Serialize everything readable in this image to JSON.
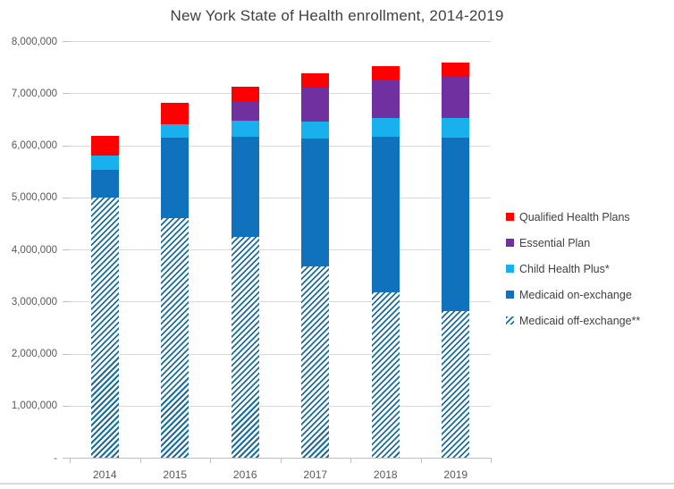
{
  "title": "New York State of Health enrollment, 2014-2019",
  "chart_data": {
    "type": "bar",
    "stacked": true,
    "title": "New York State of Health enrollment, 2014-2019",
    "categories": [
      "2014",
      "2015",
      "2016",
      "2017",
      "2018",
      "2019"
    ],
    "series": [
      {
        "name": "Medicaid off-exchange**",
        "color": "#1a6e9e",
        "pattern": "diagonal-hatch",
        "values": [
          5000000,
          4600000,
          4240000,
          3670000,
          3180000,
          2820000
        ]
      },
      {
        "name": "Medicaid on-exchange",
        "color": "#1072bc",
        "pattern": "solid",
        "values": [
          520000,
          1540000,
          1920000,
          2460000,
          2980000,
          3320000
        ]
      },
      {
        "name": "Child Health Plus*",
        "color": "#18b1ee",
        "pattern": "solid",
        "values": [
          290000,
          270000,
          310000,
          330000,
          370000,
          380000
        ]
      },
      {
        "name": "Essential Plan",
        "color": "#7030a0",
        "pattern": "solid",
        "values": [
          0,
          0,
          380000,
          650000,
          730000,
          800000
        ]
      },
      {
        "name": "Qualified Health Plans",
        "color": "#fe0000",
        "pattern": "solid",
        "values": [
          370000,
          410000,
          270000,
          270000,
          260000,
          270000
        ]
      }
    ],
    "legend_entries_top_to_bottom": [
      "Qualified Health Plans",
      "Essential Plan",
      "Child Health Plus*",
      "Medicaid on-exchange",
      "Medicaid off-exchange**"
    ],
    "legend_position": "right",
    "grid": true,
    "y_axis": {
      "min": 0,
      "max": 8000000,
      "tick_interval": 1000000,
      "tick_labels_bottom_to_top": [
        "-",
        "1,000,000",
        "2,000,000",
        "3,000,000",
        "4,000,000",
        "5,000,000",
        "6,000,000",
        "7,000,000",
        "8,000,000"
      ]
    }
  }
}
